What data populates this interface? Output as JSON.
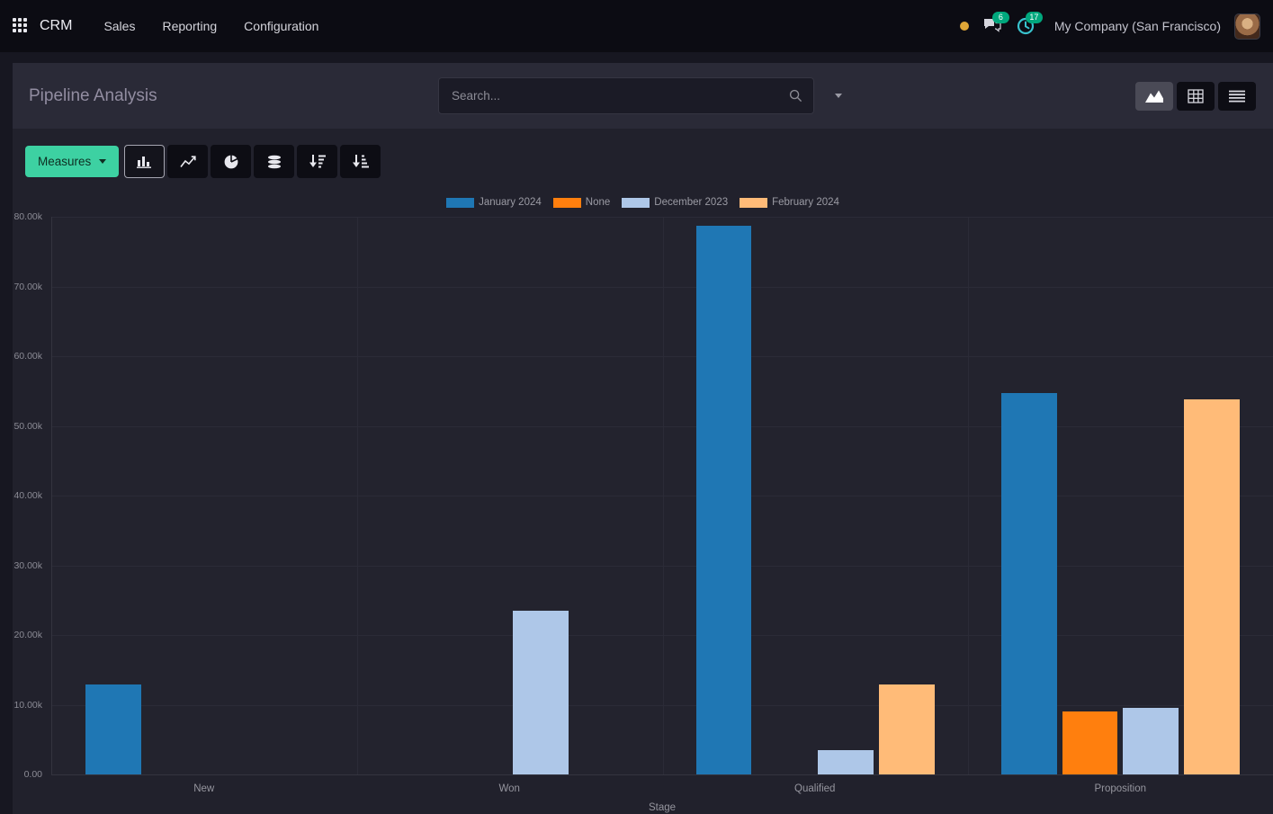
{
  "topbar": {
    "app_name": "CRM",
    "menus": [
      {
        "label": "Sales"
      },
      {
        "label": "Reporting"
      },
      {
        "label": "Configuration"
      }
    ],
    "messages_badge": "6",
    "activities_badge": "17",
    "company_name": "My Company (San Francisco)"
  },
  "control_panel": {
    "title": "Pipeline Analysis",
    "search": {
      "placeholder": "Search..."
    }
  },
  "toolbar": {
    "measures_label": "Measures"
  },
  "icons": {
    "apps_grid": "grid-3x3",
    "messages": "chat-bubbles",
    "activities": "clock",
    "search": "magnifier",
    "caret_down": "▾",
    "view_graph": "area-chart",
    "view_pivot": "pivot-table",
    "view_list": "list",
    "tool_bar": "bar-chart",
    "tool_line": "line-chart",
    "tool_pie": "pie-chart",
    "tool_stacked": "stacked-discs",
    "tool_sort_desc": "sort-amount-desc",
    "tool_sort_asc": "sort-amount-asc"
  },
  "theme": {
    "measures_bg": "#3dd1a2",
    "measures_text": "#0e2e22",
    "badge_bg": "#00a87d",
    "clock_color": "#39c2cd",
    "dot_color": "#dfa637"
  },
  "chart_data": {
    "type": "bar",
    "title": "Pipeline Analysis",
    "categories": [
      "New",
      "Won",
      "Qualified",
      "Proposition"
    ],
    "series": [
      {
        "name": "January 2024",
        "color": "#1f77b4",
        "values": [
          12900,
          null,
          78700,
          54700
        ]
      },
      {
        "name": "None",
        "color": "#ff7f0e",
        "values": [
          null,
          null,
          null,
          9000
        ]
      },
      {
        "name": "December 2023",
        "color": "#aec7e8",
        "values": [
          null,
          23500,
          3500,
          9500
        ]
      },
      {
        "name": "February 2024",
        "color": "#ffbb78",
        "values": [
          null,
          null,
          12900,
          53800
        ]
      }
    ],
    "xlabel": "Stage",
    "ylabel": "",
    "ylim": [
      0,
      80000
    ],
    "ytick_step": 10000,
    "ytick_labels": [
      "80.00k",
      "70.00k",
      "60.00k",
      "50.00k",
      "40.00k",
      "30.00k",
      "20.00k",
      "10.00k",
      "0.00"
    ],
    "grid": true,
    "legend_position": "top"
  }
}
